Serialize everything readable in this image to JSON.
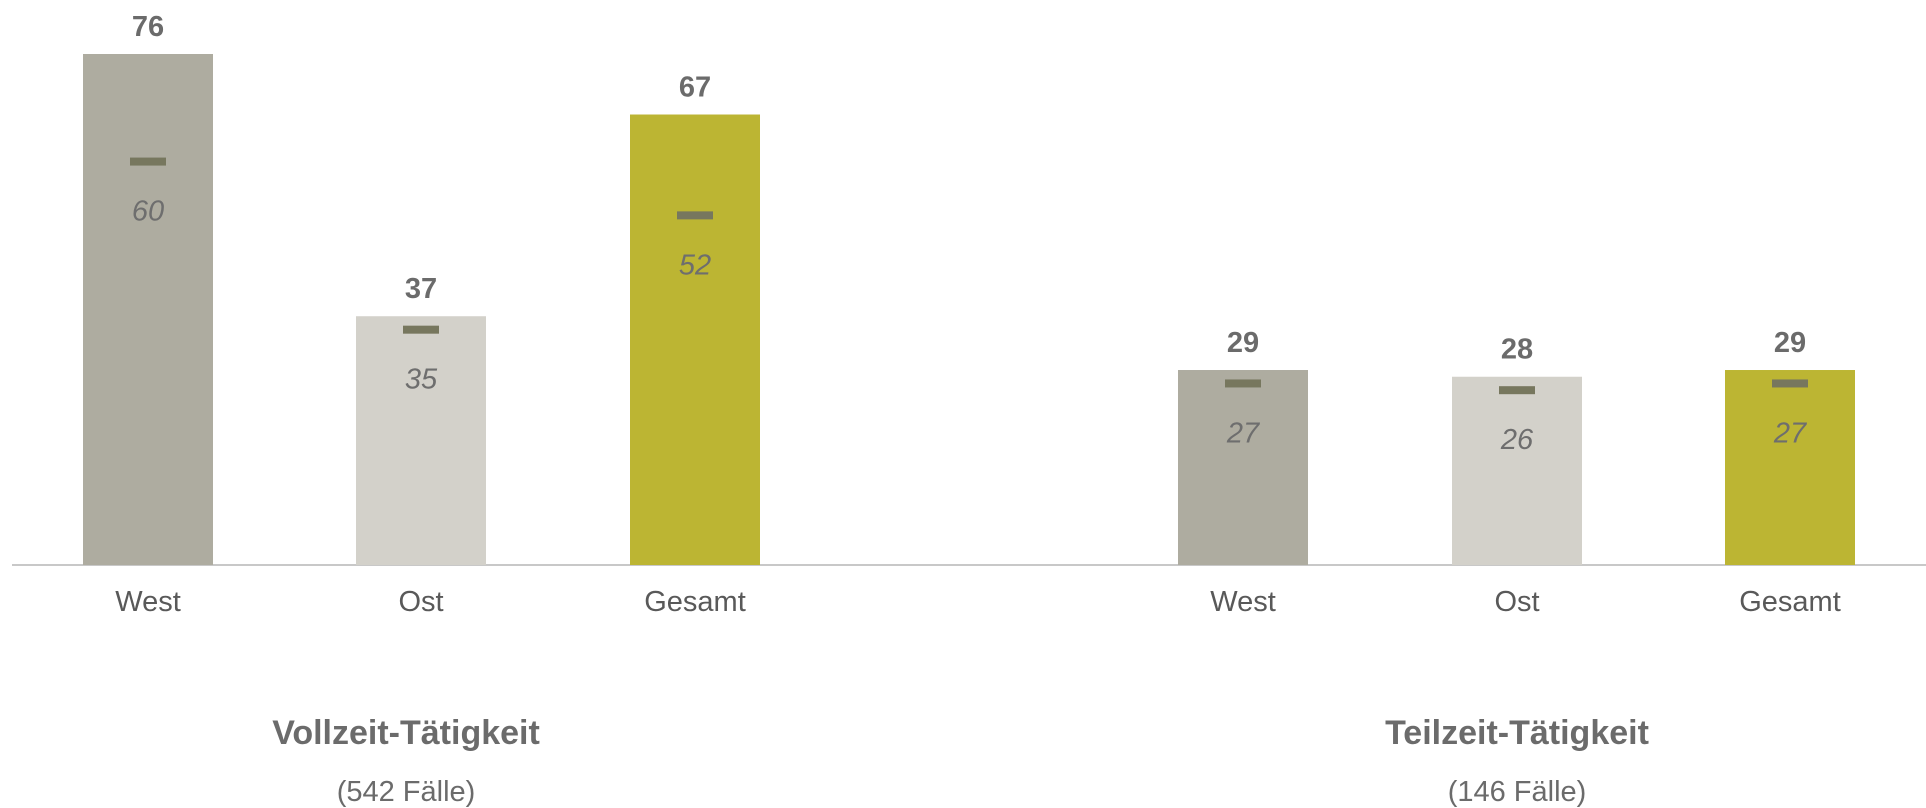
{
  "chart_data": {
    "type": "bar",
    "y_range": [
      0,
      76
    ],
    "grid": false,
    "groups": [
      {
        "title": "Vollzeit-Tätigkeit",
        "subtitle": "(542 Fälle)",
        "categories": [
          "West",
          "Ost",
          "Gesamt"
        ],
        "values": [
          76,
          37,
          67
        ],
        "marker_values": [
          60,
          35,
          52
        ]
      },
      {
        "title": "Teilzeit-Tätigkeit",
        "subtitle": "(146 Fälle)",
        "categories": [
          "West",
          "Ost",
          "Gesamt"
        ],
        "values": [
          29,
          28,
          29
        ],
        "marker_values": [
          27,
          26,
          27
        ]
      }
    ],
    "colors": {
      "West": "#aeaca0",
      "Ost": "#d3d1ca",
      "Gesamt": "#bcb533",
      "marker": "#77775e",
      "axis": "#c8c8c8"
    }
  }
}
